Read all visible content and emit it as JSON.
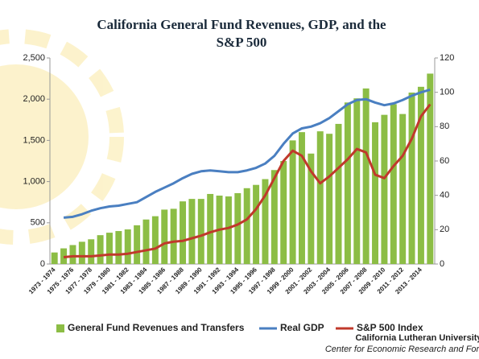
{
  "chart_data": {
    "type": "bar_line",
    "title": [
      "California General Fund Revenues, GDP, and the",
      "S&P 500"
    ],
    "categories": [
      "1973 - 1974",
      null,
      "1975 - 1976",
      null,
      "1977 - 1978",
      null,
      "1979 - 1980",
      null,
      "1981 - 1982",
      null,
      "1983 - 1984",
      null,
      "1985 - 1986",
      null,
      "1987 - 1988",
      null,
      "1989 - 1990",
      null,
      "1991 - 1992",
      null,
      "1993 - 1994",
      null,
      "1995 - 1996",
      null,
      "1997 - 1998",
      null,
      "1999 - 2000",
      null,
      "2001 - 2002",
      null,
      "2003 - 2004",
      null,
      "2005 - 2006",
      null,
      "2007 - 2008",
      null,
      "2009 - 2010",
      null,
      "2011 - 2012",
      null,
      "2013 - 2014",
      null
    ],
    "series": [
      {
        "name": "General Fund Revenues and Transfers",
        "color": "#8cbd45",
        "kind": "bar",
        "axis": "y",
        "values": [
          140,
          190,
          230,
          270,
          300,
          350,
          380,
          400,
          420,
          470,
          540,
          580,
          660,
          670,
          760,
          790,
          790,
          850,
          830,
          820,
          860,
          920,
          960,
          1030,
          1140,
          1250,
          1500,
          1600,
          1340,
          1610,
          1580,
          1700,
          1960,
          2010,
          2130,
          1720,
          1810,
          1940,
          1820,
          2080,
          2150,
          2310
        ]
      },
      {
        "name": "Real GDP",
        "color": "#4a7fc1",
        "kind": "line",
        "axis": "y2",
        "values": [
          null,
          27,
          27.5,
          29,
          31,
          32.5,
          33.5,
          34,
          35,
          36,
          39,
          42,
          44.5,
          47,
          50,
          52.5,
          54,
          54.5,
          54,
          53.5,
          53.5,
          54.5,
          56,
          58.5,
          63,
          70,
          76,
          79,
          80,
          82,
          85,
          89,
          93,
          95.5,
          96,
          94,
          92.5,
          93.5,
          95.5,
          98,
          100,
          101.5
        ]
      },
      {
        "name": "S&P 500 Index",
        "color": "#c0392b",
        "kind": "line",
        "axis": "y2",
        "values": [
          null,
          4,
          4.5,
          4.5,
          4.5,
          5,
          5.5,
          5.5,
          6,
          7,
          8,
          9,
          12,
          13,
          13.5,
          15,
          16.5,
          18.5,
          20,
          21,
          23,
          26,
          32,
          40,
          50,
          60,
          66,
          63,
          54,
          47,
          51,
          56,
          61,
          67,
          65,
          52,
          50,
          57,
          63,
          73,
          86,
          93
        ]
      }
    ],
    "ylim": [
      0,
      2500
    ],
    "yticks": [
      0,
      500,
      {
        "value": 1000,
        "label": "1,000"
      },
      {
        "value": 1500,
        "label": "1,500"
      },
      {
        "value": 2000,
        "label": "2,000"
      },
      {
        "value": 2500,
        "label": "2,500"
      }
    ],
    "y2lim": [
      0,
      120
    ],
    "y2ticks": [
      0,
      20,
      40,
      60,
      80,
      100,
      120
    ],
    "grid": false,
    "legend": "bottom",
    "logo": [
      "California Lutheran University",
      "Center for Economic Research and Forecasting"
    ]
  }
}
